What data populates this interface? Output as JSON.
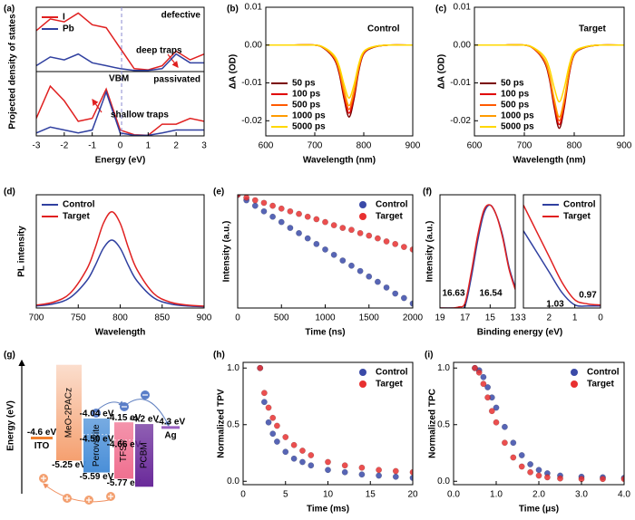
{
  "chart_data": [
    {
      "type": "dos",
      "panel_label": "(a)",
      "xlabel": "Energy (eV)",
      "ylabel": "Projected density of states",
      "xlim": [
        -3,
        3
      ],
      "xticks": [
        -3,
        -2,
        -1,
        0,
        1,
        2,
        3
      ],
      "x": [
        -3,
        -2.5,
        -2,
        -1.5,
        -1,
        -0.5,
        0,
        0.5,
        1,
        1.5,
        2,
        2.5,
        3
      ],
      "vline": 0.05,
      "vline_label": "VBM",
      "legend": "upper left",
      "subplots": [
        {
          "label": "defective",
          "annotation": "deep traps",
          "ylim": [
            0,
            1.1
          ],
          "series": [
            {
              "name": "I",
              "color": "#e02020",
              "values": [
                0.7,
                0.9,
                0.85,
                1,
                0.8,
                0.75,
                0.4,
                0.05,
                0.03,
                0.1,
                0.35,
                0.2,
                0.3
              ]
            },
            {
              "name": "Pb",
              "color": "#3040a0",
              "values": [
                0.1,
                0.25,
                0.2,
                0.3,
                0.15,
                0.1,
                0.05,
                0.02,
                0.02,
                0.05,
                0.3,
                0.15,
                0.15
              ]
            }
          ]
        },
        {
          "label": "passivated",
          "annotation": "shallow traps",
          "ylim": [
            0,
            1.1
          ],
          "series": [
            {
              "color": "#e02020",
              "values": [
                0.3,
                0.85,
                0.6,
                0.25,
                0.3,
                0.8,
                0.1,
                0.02,
                0.01,
                0.2,
                0.2,
                0.3,
                0.25
              ]
            },
            {
              "color": "#3040a0",
              "values": [
                0.05,
                0.15,
                0.1,
                0.05,
                0.1,
                0.75,
                0.05,
                0.01,
                0.01,
                0.05,
                0.1,
                0.1,
                0.1
              ]
            }
          ]
        }
      ]
    },
    {
      "type": "line",
      "panel_label": "(b)",
      "annotation": "Control",
      "xlabel": "Wavelength (nm)",
      "ylabel": "ΔA (OD)",
      "xlim": [
        600,
        900
      ],
      "xticks": [
        600,
        700,
        800,
        900
      ],
      "ylim": [
        -0.024,
        0.01
      ],
      "yticks": [
        0.01,
        {
          "value": 0,
          "label": "0.00"
        },
        -0.01,
        -0.02
      ],
      "legend": "lower left",
      "x": [
        600,
        650,
        700,
        720,
        740,
        750,
        760,
        770,
        780,
        790,
        800,
        820,
        850,
        900
      ],
      "series": [
        {
          "name": "50 ps",
          "color": "#7a0000",
          "values": [
            0,
            0,
            0,
            -0.001,
            -0.0038,
            -0.0076,
            -0.0143,
            -0.019,
            -0.0143,
            -0.0067,
            -0.0023,
            -0.0006,
            0,
            0
          ]
        },
        {
          "name": "100 ps",
          "color": "#e00000",
          "values": [
            0,
            0,
            0,
            -0.0009,
            -0.0036,
            -0.0072,
            -0.0135,
            -0.018,
            -0.0135,
            -0.0063,
            -0.0022,
            -0.0005,
            0,
            0
          ]
        },
        {
          "name": "500 ps",
          "color": "#ff5a00",
          "values": [
            0,
            0,
            0,
            -0.0009,
            -0.0034,
            -0.0068,
            -0.0128,
            -0.017,
            -0.0128,
            -0.006,
            -0.002,
            -0.0005,
            0,
            0
          ]
        },
        {
          "name": "1000 ps",
          "color": "#ff9a00",
          "values": [
            0,
            0,
            0,
            -0.0008,
            -0.0032,
            -0.0064,
            -0.012,
            -0.016,
            -0.012,
            -0.0056,
            -0.0019,
            -0.0005,
            0,
            0
          ]
        },
        {
          "name": "5000 ps",
          "color": "#ffd800",
          "values": [
            0,
            0,
            0,
            -0.0007,
            -0.0028,
            -0.0056,
            -0.0105,
            -0.014,
            -0.0105,
            -0.0049,
            -0.0017,
            -0.0004,
            0,
            0
          ]
        }
      ]
    },
    {
      "type": "line",
      "panel_label": "(c)",
      "annotation": "Target",
      "xlabel": "Wavelength (nm)",
      "ylabel": "ΔA (OD)",
      "xlim": [
        600,
        900
      ],
      "xticks": [
        600,
        700,
        800,
        900
      ],
      "ylim": [
        -0.024,
        0.01
      ],
      "yticks": [
        0.01,
        {
          "value": 0,
          "label": "0.00"
        },
        -0.01,
        -0.02
      ],
      "legend": "lower left",
      "x": [
        600,
        650,
        700,
        720,
        740,
        750,
        760,
        770,
        780,
        790,
        800,
        820,
        850,
        900
      ],
      "series": [
        {
          "name": "50 ps",
          "color": "#7a0000",
          "values": [
            0,
            0,
            0,
            -0.0011,
            -0.0044,
            -0.0088,
            -0.0165,
            -0.022,
            -0.0165,
            -0.0077,
            -0.0026,
            -0.0007,
            0,
            0
          ]
        },
        {
          "name": "100 ps",
          "color": "#e00000",
          "values": [
            0,
            0,
            0,
            -0.0011,
            -0.0042,
            -0.0084,
            -0.0158,
            -0.021,
            -0.0158,
            -0.0074,
            -0.0025,
            -0.0006,
            0,
            0
          ]
        },
        {
          "name": "500 ps",
          "color": "#ff5a00",
          "values": [
            0,
            0,
            0,
            -0.001,
            -0.004,
            -0.008,
            -0.015,
            -0.02,
            -0.015,
            -0.007,
            -0.0024,
            -0.0006,
            0,
            0
          ]
        },
        {
          "name": "1000 ps",
          "color": "#ff9a00",
          "values": [
            0,
            0,
            0,
            -0.001,
            -0.0038,
            -0.0076,
            -0.0143,
            -0.019,
            -0.0143,
            -0.0067,
            -0.0023,
            -0.0006,
            0,
            0
          ]
        },
        {
          "name": "5000 ps",
          "color": "#ffd800",
          "values": [
            0,
            0,
            0,
            -0.0008,
            -0.003,
            -0.006,
            -0.0113,
            -0.015,
            -0.0113,
            -0.0053,
            -0.0018,
            -0.0005,
            0,
            0
          ]
        }
      ]
    },
    {
      "type": "line",
      "panel_label": "(d)",
      "xlabel": "Wavelength",
      "ylabel": "PL intensity",
      "xlim": [
        700,
        900
      ],
      "xticks": [
        700,
        750,
        800,
        850,
        900
      ],
      "ylim": [
        0,
        1
      ],
      "legend": "upper left",
      "x": [
        700,
        720,
        740,
        760,
        770,
        780,
        790,
        800,
        810,
        820,
        840,
        860,
        880,
        900
      ],
      "series": [
        {
          "name": "Control",
          "color": "#3040a0",
          "values": [
            0.018,
            0.036,
            0.09,
            0.24,
            0.372,
            0.528,
            0.6,
            0.528,
            0.372,
            0.24,
            0.09,
            0.036,
            0.018,
            0.012
          ]
        },
        {
          "name": "Target",
          "color": "#e02020",
          "values": [
            0.026,
            0.051,
            0.128,
            0.34,
            0.527,
            0.748,
            0.85,
            0.748,
            0.527,
            0.34,
            0.128,
            0.051,
            0.026,
            0.017
          ]
        }
      ]
    },
    {
      "type": "scatter",
      "panel_label": "(e)",
      "xlabel": "Time (ns)",
      "ylabel": "Intensity (a.u.)",
      "xlim": [
        0,
        2000
      ],
      "xticks": [
        0,
        500,
        1000,
        1500,
        2000
      ],
      "ylim": [
        0.01,
        1
      ],
      "log_y": true,
      "legend": "upper right",
      "x": [
        0,
        100,
        200,
        300,
        400,
        500,
        600,
        700,
        800,
        900,
        1000,
        1100,
        1200,
        1300,
        1400,
        1500,
        1600,
        1700,
        1800,
        1900,
        2000
      ],
      "series": [
        {
          "name": "Control",
          "color": "#3a4aa8",
          "values": [
            1,
            0.8,
            0.64,
            0.51,
            0.41,
            0.33,
            0.26,
            0.21,
            0.17,
            0.135,
            0.108,
            0.087,
            0.069,
            0.056,
            0.045,
            0.036,
            0.029,
            0.023,
            0.018,
            0.015,
            0.012
          ]
        },
        {
          "name": "Target",
          "color": "#e83030",
          "values": [
            1,
            0.89,
            0.8,
            0.72,
            0.64,
            0.57,
            0.51,
            0.46,
            0.41,
            0.37,
            0.33,
            0.29,
            0.26,
            0.24,
            0.21,
            0.19,
            0.17,
            0.15,
            0.135,
            0.12,
            0.108
          ]
        }
      ]
    },
    {
      "type": "line",
      "panel_label": "(f)",
      "xlabel": "Binding energy (eV)",
      "ylabel": "Intensity (a.u.)",
      "xlim": [
        19,
        13
      ],
      "xticks": [
        19,
        17,
        15,
        13
      ],
      "ylim": [
        0,
        1.1
      ],
      "x": [
        19,
        18,
        17.5,
        17,
        16.5,
        16,
        15.5,
        15,
        14.5,
        14,
        13.5,
        13
      ],
      "series": [
        {
          "color": "#3040a0",
          "onset": 16.54,
          "values": [
            0,
            0,
            0,
            0.02,
            0.3,
            0.65,
            0.92,
            1,
            0.9,
            0.7,
            0.4,
            0.2
          ]
        },
        {
          "color": "#e02020",
          "onset": 16.63,
          "values": [
            0,
            0,
            0.01,
            0.05,
            0.35,
            0.7,
            0.95,
            1,
            0.9,
            0.68,
            0.38,
            0.18
          ]
        }
      ]
    },
    {
      "type": "line",
      "xlim": [
        3,
        0
      ],
      "xticks": [
        3,
        2,
        1,
        0
      ],
      "ylim": [
        0,
        1.1
      ],
      "legend": "upper right",
      "x": [
        3,
        2.5,
        2,
        1.5,
        1,
        0.5,
        0
      ],
      "series": [
        {
          "name": "Control",
          "color": "#3040a0",
          "onset": 1.03,
          "values": [
            0.75,
            0.55,
            0.35,
            0.15,
            0.03,
            0.02,
            0.02
          ]
        },
        {
          "name": "Target",
          "color": "#e02020",
          "onset": 0.97,
          "values": [
            1,
            0.75,
            0.5,
            0.25,
            0.08,
            0.04,
            0.03
          ]
        }
      ]
    },
    {
      "type": "energy-levels",
      "panel_label": "(g)",
      "ylabel": "Energy (eV)",
      "ylim": [
        -6.2,
        -2.3
      ],
      "levels": [
        {
          "name": "ITO",
          "value": -4.6,
          "value_label": "-4.6 eV",
          "color": "#f08030"
        },
        {
          "name": "Ag",
          "value": -4.3,
          "value_label": "-4.3 eV",
          "color": "#9a60c0"
        }
      ],
      "bars": [
        {
          "name": "MeO-2PACz",
          "top": -2.5,
          "bottom": -5.25,
          "bottom_label": "-5.25 eV",
          "color": "#f5a070"
        },
        {
          "name": "Perovskite",
          "top": -4.04,
          "top_label": "-4.04 eV",
          "mid": -4.5,
          "mid_label": "-4.50 eV",
          "bottom": -5.59,
          "bottom_label": "-5.59 eV",
          "color": "#4a8fd8"
        },
        {
          "name": "TFSP",
          "top": -4.15,
          "top_label": "-4.15 eV",
          "mid": -4.66,
          "mid_label": "-4.66 eV",
          "bottom": -5.77,
          "bottom_label": "-5.77 eV",
          "color": "#f07090"
        },
        {
          "name": "PCBM",
          "top": -4.2,
          "top_label": "-4.2 eV",
          "bottom": -6.0,
          "color": "#6a2a9a"
        }
      ]
    },
    {
      "type": "scatter",
      "panel_label": "(h)",
      "xlabel": "Time (ms)",
      "ylabel": "Normalized TPV",
      "xlim": [
        0,
        20
      ],
      "xticks": [
        0,
        5,
        10,
        15,
        20
      ],
      "ylim": [
        -0.03,
        1.05
      ],
      "yticks": [
        {
          "value": 0,
          "label": "0.0"
        },
        0.5,
        {
          "value": 1,
          "label": "1.0"
        }
      ],
      "legend": "upper right",
      "x": [
        2,
        2.5,
        3,
        3.5,
        4,
        5,
        6,
        7,
        8,
        10,
        12,
        14,
        16,
        18,
        20
      ],
      "series": [
        {
          "name": "Control",
          "color": "#3a4aa8",
          "values": [
            1,
            0.7,
            0.52,
            0.42,
            0.35,
            0.26,
            0.2,
            0.17,
            0.14,
            0.1,
            0.08,
            0.06,
            0.05,
            0.04,
            0.03
          ]
        },
        {
          "name": "Target",
          "color": "#e83030",
          "values": [
            1,
            0.78,
            0.65,
            0.56,
            0.49,
            0.39,
            0.32,
            0.27,
            0.23,
            0.17,
            0.14,
            0.12,
            0.1,
            0.09,
            0.08
          ]
        }
      ]
    },
    {
      "type": "scatter",
      "panel_label": "(i)",
      "xlabel": "Time (μs)",
      "ylabel": "Normalized TPC",
      "xlim": [
        0,
        4
      ],
      "xticks": [
        {
          "value": 0,
          "label": "0.0"
        },
        {
          "value": 1,
          "label": "1.0"
        },
        {
          "value": 2,
          "label": "2.0"
        },
        {
          "value": 3,
          "label": "3.0"
        },
        {
          "value": 4,
          "label": "4.0"
        }
      ],
      "ylim": [
        -0.03,
        1.05
      ],
      "yticks": [
        {
          "value": 0,
          "label": "0.0"
        },
        0.5,
        {
          "value": 1,
          "label": "1.0"
        }
      ],
      "legend": "upper right",
      "x": [
        0.5,
        0.6,
        0.7,
        0.8,
        0.9,
        1.0,
        1.2,
        1.4,
        1.6,
        1.8,
        2.0,
        2.2,
        2.5,
        3,
        3.5,
        4
      ],
      "series": [
        {
          "name": "Control",
          "color": "#3a4aa8",
          "values": [
            1,
            0.98,
            0.92,
            0.83,
            0.74,
            0.65,
            0.48,
            0.34,
            0.23,
            0.15,
            0.1,
            0.07,
            0.05,
            0.04,
            0.035,
            0.03
          ]
        },
        {
          "name": "Target",
          "color": "#e83030",
          "values": [
            1,
            0.96,
            0.86,
            0.74,
            0.62,
            0.52,
            0.34,
            0.21,
            0.13,
            0.08,
            0.05,
            0.035,
            0.025,
            0.02,
            0.02,
            0.02
          ]
        }
      ]
    }
  ]
}
